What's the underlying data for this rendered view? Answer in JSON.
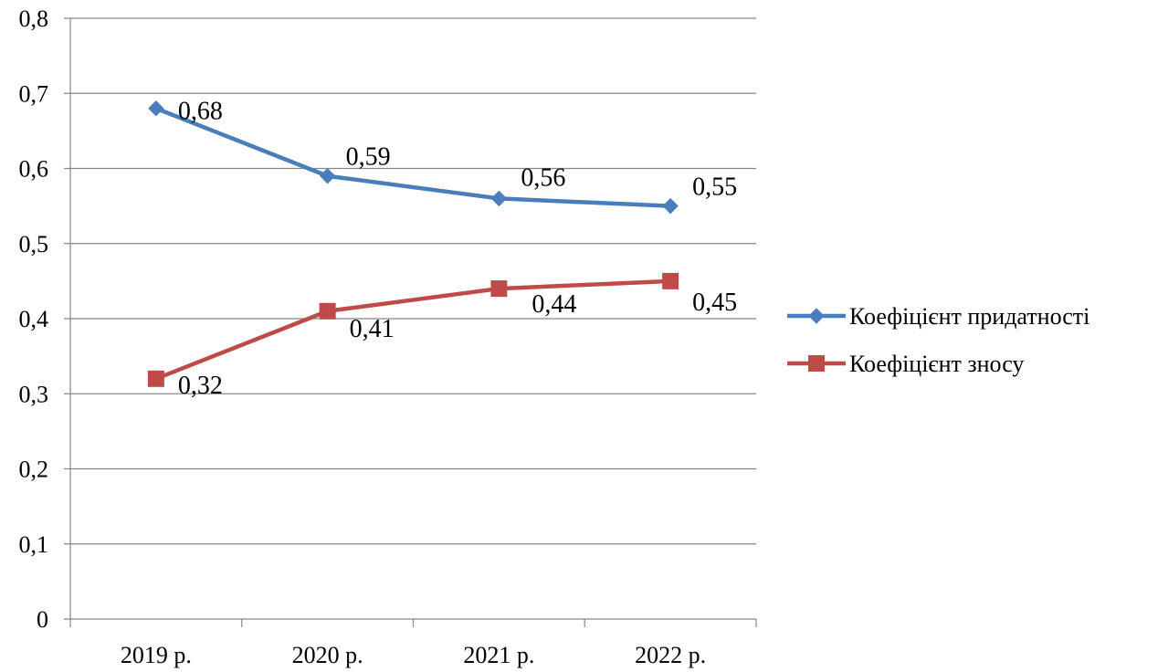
{
  "chart_data": {
    "type": "line",
    "categories": [
      "2019 р.",
      "2020 р.",
      "2021 р.",
      "2022 р."
    ],
    "y_ticks": [
      "0",
      "0,1",
      "0,2",
      "0,3",
      "0,4",
      "0,5",
      "0,6",
      "0,7",
      "0,8"
    ],
    "ylim": [
      0,
      0.8
    ],
    "grid": true,
    "legend_position": "right",
    "title": "",
    "xlabel": "",
    "ylabel": "",
    "series": [
      {
        "name": "Коефіцієнт придатності",
        "values": [
          0.68,
          0.59,
          0.56,
          0.55
        ],
        "labels": [
          "0,68",
          "0,59",
          "0,56",
          "0,55"
        ],
        "color": "#4A7EBB",
        "marker": "diamond"
      },
      {
        "name": "Коефіцієнт зносу",
        "values": [
          0.32,
          0.41,
          0.44,
          0.45
        ],
        "labels": [
          "0,32",
          "0,41",
          "0,44",
          "0,45"
        ],
        "color": "#BE4B48",
        "marker": "square"
      }
    ]
  }
}
